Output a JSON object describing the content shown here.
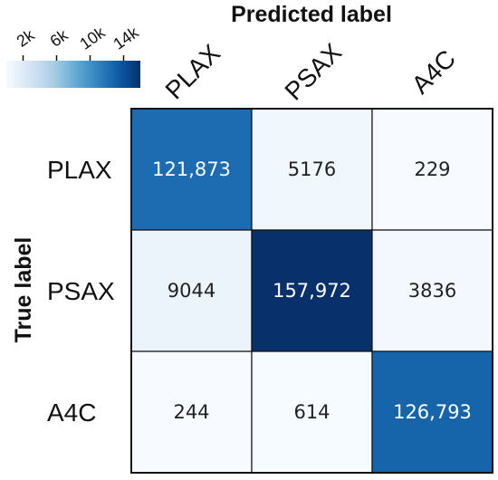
{
  "chart_data": {
    "type": "heatmap",
    "title": "",
    "xlabel": "Predicted label",
    "ylabel": "True label",
    "x_categories": [
      "PLAX",
      "PSAX",
      "A4C"
    ],
    "y_categories": [
      "PLAX",
      "PSAX",
      "A4C"
    ],
    "values": [
      [
        121873,
        5176,
        229
      ],
      [
        9044,
        157972,
        3836
      ],
      [
        244,
        614,
        126793
      ]
    ],
    "cell_labels": [
      [
        "121,873",
        "5176",
        "229"
      ],
      [
        "9044",
        "157,972",
        "3836"
      ],
      [
        "244",
        "614",
        "126,793"
      ]
    ],
    "colormap": "Blues",
    "color_low": "#f7fbff",
    "color_high": "#08306b",
    "colorbar": {
      "placement": "top-left",
      "range": [
        0,
        16000
      ],
      "ticks": [
        2000,
        6000,
        10000,
        14000
      ],
      "tick_labels": [
        "2k",
        "6k",
        "10k",
        "14k"
      ]
    },
    "grid": false
  }
}
